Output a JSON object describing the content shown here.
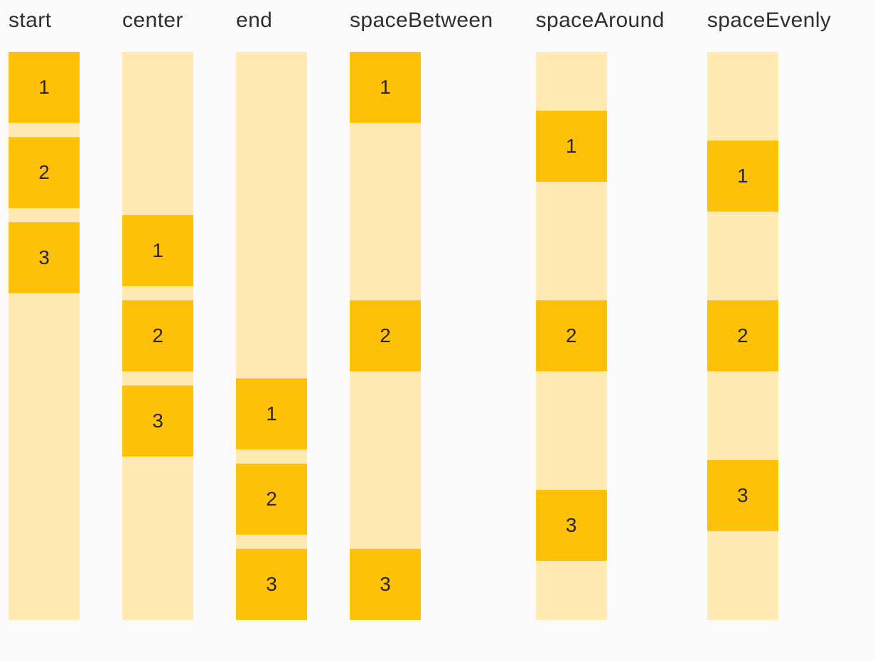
{
  "page": {
    "background": "#fbfbfd",
    "title": "main-axis-alignment-demo"
  },
  "colors": {
    "container_track": "#ffebb1",
    "item_box": "#fec107",
    "label_text": "#2f2f2f",
    "number_text": "#262626"
  },
  "columns": [
    {
      "label": "start",
      "justify": "flex-start",
      "gapped": true,
      "items": [
        "1",
        "2",
        "3"
      ]
    },
    {
      "label": "center",
      "justify": "center",
      "gapped": true,
      "items": [
        "1",
        "2",
        "3"
      ]
    },
    {
      "label": "end",
      "justify": "flex-end",
      "gapped": true,
      "items": [
        "1",
        "2",
        "3"
      ]
    },
    {
      "label": "spaceBetween",
      "justify": "space-between",
      "gapped": false,
      "items": [
        "1",
        "2",
        "3"
      ]
    },
    {
      "label": "spaceAround",
      "justify": "space-around",
      "gapped": false,
      "items": [
        "1",
        "2",
        "3"
      ]
    },
    {
      "label": "spaceEvenly",
      "justify": "space-evenly",
      "gapped": false,
      "items": [
        "1",
        "2",
        "3"
      ]
    }
  ]
}
